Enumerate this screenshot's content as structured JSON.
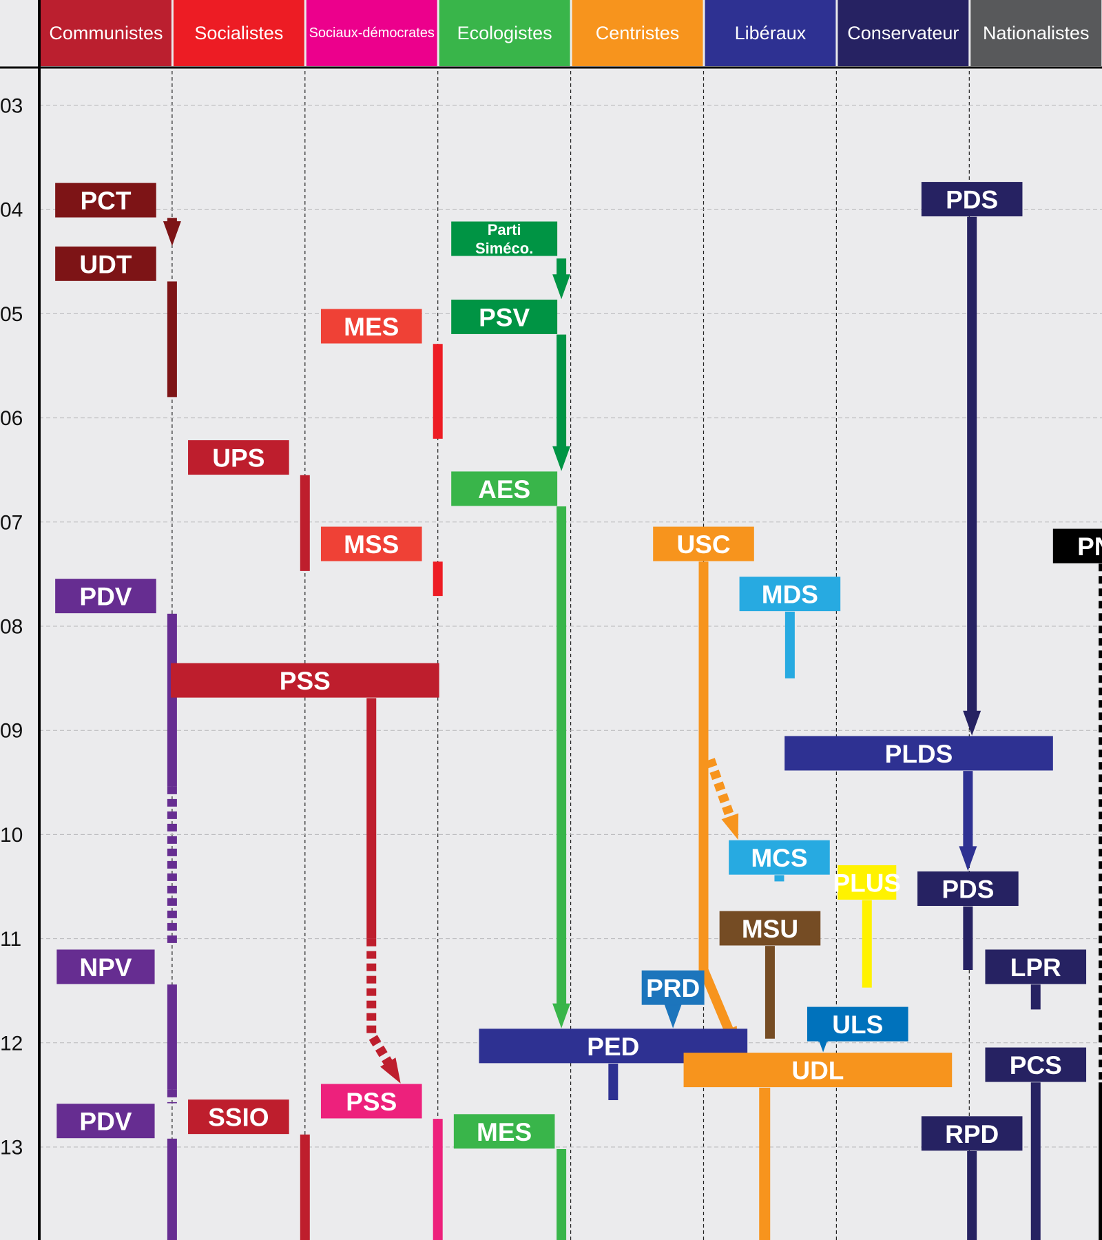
{
  "columns": [
    {
      "label": "Communistes",
      "color": "#bb1f2f"
    },
    {
      "label": "Socialistes",
      "color": "#ed1c24"
    },
    {
      "label": "Sociaux-démocrates",
      "color": "#ec008c",
      "small": true
    },
    {
      "label": "Ecologistes",
      "color": "#39b54a"
    },
    {
      "label": "Centristes",
      "color": "#f7941d"
    },
    {
      "label": "Libéraux",
      "color": "#2e3192"
    },
    {
      "label": "Conservateur",
      "color": "#262262"
    },
    {
      "label": "Nationalistes",
      "color": "#58595b"
    }
  ],
  "years": [
    {
      "label": "03",
      "v": 0
    },
    {
      "label": "04",
      "v": 1
    },
    {
      "label": "05",
      "v": 2
    },
    {
      "label": "06",
      "v": 3
    },
    {
      "label": "07",
      "v": 4
    },
    {
      "label": "08",
      "v": 5
    },
    {
      "label": "09",
      "v": 6
    },
    {
      "label": "10",
      "v": 7
    },
    {
      "label": "11",
      "v": 8
    },
    {
      "label": "12",
      "v": 9
    },
    {
      "label": "13",
      "v": 10
    }
  ],
  "parties": [
    {
      "id": "pct",
      "label": "PCT",
      "color": "#7d1416",
      "col": 0,
      "w": 1.0,
      "y": 0.91
    },
    {
      "id": "udt",
      "label": "UDT",
      "color": "#7d1416",
      "col": 0,
      "w": 1.0,
      "y": 1.52
    },
    {
      "id": "pdv1",
      "label": "PDV",
      "color": "#662d91",
      "col": 0,
      "w": 1.0,
      "y": 4.71
    },
    {
      "id": "npv",
      "label": "NPV",
      "color": "#662d91",
      "col": 0,
      "w": 0.97,
      "y": 8.27
    },
    {
      "id": "pdv2",
      "label": "PDV",
      "color": "#662d91",
      "col": 0,
      "w": 0.97,
      "y": 9.75
    },
    {
      "id": "ups",
      "label": "UPS",
      "color": "#be1e2d",
      "col": 1,
      "w": 1.0,
      "y": 3.38
    },
    {
      "id": "pss1",
      "label": "PSS",
      "color": "#be1e2d",
      "col": 1.5,
      "w": 2.0,
      "y": 5.52
    },
    {
      "id": "ssio",
      "label": "SSIO",
      "color": "#be1e2d",
      "col": 1,
      "w": 1.0,
      "y": 9.71
    },
    {
      "id": "mes1",
      "label": "MES",
      "color": "#ef4136",
      "col": 2,
      "w": 1.0,
      "y": 2.12
    },
    {
      "id": "mss",
      "label": "MSS",
      "color": "#ef4136",
      "col": 2,
      "w": 1.0,
      "y": 4.21
    },
    {
      "id": "pss2",
      "label": "PSS",
      "color": "#ed217c",
      "col": 2,
      "w": 1.0,
      "y": 9.56
    },
    {
      "id": "simeco",
      "label": "Parti Siméco.",
      "color": "#009444",
      "col": 3,
      "w": 1.05,
      "y": 1.28,
      "two": true
    },
    {
      "id": "psv",
      "label": "PSV",
      "color": "#009444",
      "col": 3,
      "w": 1.05,
      "y": 2.03
    },
    {
      "id": "aes",
      "label": "AES",
      "color": "#39b54a",
      "col": 3,
      "w": 1.05,
      "y": 3.68
    },
    {
      "id": "mes2",
      "label": "MES",
      "color": "#39b54a",
      "col": 3,
      "w": 1.0,
      "y": 9.85
    },
    {
      "id": "ped",
      "label": "PED",
      "color": "#2e3192",
      "col": 3.82,
      "w": 2.0,
      "y": 9.03
    },
    {
      "id": "prd",
      "label": "PRD",
      "color": "#1c75bc",
      "col": 4.27,
      "w": 0.62,
      "y": 8.47
    },
    {
      "id": "usc",
      "label": "USC",
      "color": "#f7941d",
      "col": 4.5,
      "w": 1.0,
      "y": 4.21
    },
    {
      "id": "udl",
      "label": "UDL",
      "color": "#f7941d",
      "col": 5.36,
      "w": 2.0,
      "y": 9.26
    },
    {
      "id": "mds",
      "label": "MDS",
      "color": "#27aae1",
      "col": 5.15,
      "w": 1.0,
      "y": 4.69
    },
    {
      "id": "mcs",
      "label": "MCS",
      "color": "#27aae1",
      "col": 5.07,
      "w": 1.0,
      "y": 7.22
    },
    {
      "id": "msu",
      "label": "MSU",
      "color": "#754c24",
      "col": 5.0,
      "w": 1.0,
      "y": 7.9
    },
    {
      "id": "uls",
      "label": "ULS",
      "color": "#0072bc",
      "col": 5.66,
      "w": 1.0,
      "y": 8.82
    },
    {
      "id": "plus",
      "label": "PLUS",
      "color": "#fff200",
      "col": 5.73,
      "w": 0.58,
      "y": 7.46
    },
    {
      "id": "pds1",
      "label": "PDS",
      "color": "#262262",
      "col": 6.52,
      "w": 1.0,
      "y": 0.9
    },
    {
      "id": "plds",
      "label": "PLDS",
      "color": "#2e3192",
      "col": 6.12,
      "w": 2.0,
      "y": 6.22
    },
    {
      "id": "pds2",
      "label": "PDS",
      "color": "#262262",
      "col": 6.49,
      "w": 1.0,
      "y": 7.52
    },
    {
      "id": "lpr",
      "label": "LPR",
      "color": "#262262",
      "col": 7.0,
      "w": 1.0,
      "y": 8.27
    },
    {
      "id": "pcs",
      "label": "PCS",
      "color": "#262262",
      "col": 7.0,
      "w": 1.0,
      "y": 9.21
    },
    {
      "id": "rpd",
      "label": "RPD",
      "color": "#262262",
      "col": 6.52,
      "w": 1.0,
      "y": 9.87
    },
    {
      "id": "pns",
      "label": "PNS",
      "color": "#000000",
      "col": 7.51,
      "w": 1.0,
      "y": 4.23
    }
  ],
  "links": [
    {
      "id": "pct-udt",
      "color": "#7d1416",
      "style": "solid",
      "w": 14,
      "pts": [
        [
          0.5,
          1.08
        ],
        [
          0.5,
          1.35
        ]
      ],
      "arrow": true
    },
    {
      "id": "udt-life",
      "color": "#7d1416",
      "style": "solid",
      "w": 14,
      "pts": [
        [
          0.5,
          1.69
        ],
        [
          0.5,
          2.8
        ]
      ]
    },
    {
      "id": "pdv-solid",
      "color": "#662d91",
      "style": "solid",
      "w": 14,
      "pts": [
        [
          0.5,
          4.88
        ],
        [
          0.5,
          6.54
        ]
      ]
    },
    {
      "id": "pdv-dash",
      "color": "#662d91",
      "style": "dashed",
      "w": 14,
      "pts": [
        [
          0.5,
          6.54
        ],
        [
          0.5,
          8.05
        ]
      ]
    },
    {
      "id": "npv-line",
      "color": "#662d91",
      "style": "solid",
      "w": 14,
      "pts": [
        [
          0.5,
          8.44
        ],
        [
          0.5,
          9.45
        ]
      ]
    },
    {
      "id": "npv-dash",
      "color": "#662d91",
      "style": "dashed",
      "w": 14,
      "pts": [
        [
          0.5,
          9.45
        ],
        [
          0.5,
          9.58
        ]
      ]
    },
    {
      "id": "pdv2-line",
      "color": "#662d91",
      "style": "solid",
      "w": 14,
      "pts": [
        [
          0.5,
          9.92
        ],
        [
          0.5,
          10.9
        ]
      ]
    },
    {
      "id": "ups-line",
      "color": "#be1e2d",
      "style": "solid",
      "w": 14,
      "pts": [
        [
          1.5,
          3.55
        ],
        [
          1.5,
          4.47
        ]
      ]
    },
    {
      "id": "pss-solid",
      "color": "#be1e2d",
      "style": "solid",
      "w": 14,
      "pts": [
        [
          2.0,
          5.69
        ],
        [
          2.0,
          8.0
        ]
      ]
    },
    {
      "id": "pss-dash",
      "color": "#be1e2d",
      "style": "dashed",
      "w": 14,
      "pts": [
        [
          2.0,
          8.0
        ],
        [
          2.0,
          8.92
        ],
        [
          2.22,
          9.39
        ]
      ],
      "arrow": true
    },
    {
      "id": "ssio-line",
      "color": "#be1e2d",
      "style": "solid",
      "w": 14,
      "pts": [
        [
          1.5,
          9.88
        ],
        [
          1.5,
          10.9
        ]
      ]
    },
    {
      "id": "mes1-line",
      "color": "#ed1c24",
      "style": "solid",
      "w": 14,
      "pts": [
        [
          2.5,
          2.29
        ],
        [
          2.5,
          3.2
        ]
      ]
    },
    {
      "id": "mss-line",
      "color": "#ed1c24",
      "style": "solid",
      "w": 14,
      "pts": [
        [
          2.5,
          4.38
        ],
        [
          2.5,
          4.71
        ]
      ]
    },
    {
      "id": "pss2-line",
      "color": "#ed217c",
      "style": "solid",
      "w": 14,
      "pts": [
        [
          2.5,
          9.73
        ],
        [
          2.5,
          10.9
        ]
      ]
    },
    {
      "id": "simeco-psv",
      "color": "#009444",
      "style": "solid",
      "w": 14,
      "pts": [
        [
          3.43,
          1.47
        ],
        [
          3.43,
          1.86
        ]
      ],
      "arrow": true
    },
    {
      "id": "psv-aes",
      "color": "#009444",
      "style": "solid",
      "w": 14,
      "pts": [
        [
          3.43,
          2.2
        ],
        [
          3.43,
          3.51
        ]
      ],
      "arrow": true
    },
    {
      "id": "aes-ped",
      "color": "#39b54a",
      "style": "solid",
      "w": 14,
      "pts": [
        [
          3.43,
          3.85
        ],
        [
          3.43,
          8.86
        ]
      ],
      "arrow": true
    },
    {
      "id": "mes2-line",
      "color": "#39b54a",
      "style": "solid",
      "w": 14,
      "pts": [
        [
          3.43,
          10.02
        ],
        [
          3.43,
          10.9
        ]
      ]
    },
    {
      "id": "ped-stub",
      "color": "#2e3192",
      "style": "solid",
      "w": 14,
      "pts": [
        [
          3.82,
          9.2
        ],
        [
          3.82,
          9.55
        ]
      ]
    },
    {
      "id": "prd-ped",
      "color": "#1c75bc",
      "style": "solid",
      "w": 14,
      "pts": [
        [
          4.27,
          8.64
        ],
        [
          4.27,
          8.86
        ]
      ],
      "arrow": true
    },
    {
      "id": "usc-line",
      "color": "#f7941d",
      "style": "solid",
      "w": 14,
      "pts": [
        [
          4.5,
          4.38
        ],
        [
          4.5,
          8.3
        ],
        [
          4.76,
          9.09
        ]
      ],
      "arrow": true
    },
    {
      "id": "usc-mcs",
      "color": "#f7941d",
      "style": "dashed",
      "w": 14,
      "pts": [
        [
          4.55,
          6.28
        ],
        [
          4.76,
          7.05
        ]
      ],
      "arrow": true
    },
    {
      "id": "udl-line",
      "color": "#f7941d",
      "style": "solid",
      "w": 16,
      "pts": [
        [
          4.96,
          9.43
        ],
        [
          4.96,
          10.9
        ]
      ]
    },
    {
      "id": "mds-line",
      "color": "#27aae1",
      "style": "solid",
      "w": 14,
      "pts": [
        [
          5.15,
          4.86
        ],
        [
          5.15,
          5.5
        ]
      ]
    },
    {
      "id": "mcs-stub",
      "color": "#27aae1",
      "style": "solid",
      "w": 14,
      "pts": [
        [
          5.07,
          7.39
        ],
        [
          5.07,
          7.45
        ]
      ]
    },
    {
      "id": "msu-line",
      "color": "#754c24",
      "style": "solid",
      "w": 14,
      "pts": [
        [
          5.0,
          8.07
        ],
        [
          5.0,
          8.96
        ]
      ]
    },
    {
      "id": "plus-line",
      "color": "#fff200",
      "style": "solid",
      "w": 14,
      "pts": [
        [
          5.73,
          7.63
        ],
        [
          5.73,
          8.47
        ]
      ]
    },
    {
      "id": "uls-udl",
      "color": "#0072bc",
      "style": "solid",
      "w": 14,
      "pts": [
        [
          5.4,
          8.99
        ],
        [
          5.4,
          9.09
        ]
      ],
      "arrow": true
    },
    {
      "id": "pds-plds",
      "color": "#262262",
      "style": "solid",
      "w": 14,
      "pts": [
        [
          6.52,
          1.07
        ],
        [
          6.52,
          6.05
        ]
      ],
      "arrow": true
    },
    {
      "id": "plds-pds",
      "color": "#2e3192",
      "style": "solid",
      "w": 14,
      "pts": [
        [
          6.49,
          6.39
        ],
        [
          6.49,
          7.35
        ]
      ],
      "arrow": true
    },
    {
      "id": "pds2-line",
      "color": "#262262",
      "style": "solid",
      "w": 14,
      "pts": [
        [
          6.49,
          7.69
        ],
        [
          6.49,
          8.3
        ]
      ]
    },
    {
      "id": "lpr-stub",
      "color": "#262262",
      "style": "solid",
      "w": 14,
      "pts": [
        [
          7.0,
          8.44
        ],
        [
          7.0,
          8.68
        ]
      ]
    },
    {
      "id": "pcs-line",
      "color": "#262262",
      "style": "solid",
      "w": 14,
      "pts": [
        [
          7.0,
          9.38
        ],
        [
          7.0,
          10.9
        ]
      ]
    },
    {
      "id": "rpd-line",
      "color": "#262262",
      "style": "solid",
      "w": 14,
      "pts": [
        [
          6.52,
          10.04
        ],
        [
          6.52,
          10.9
        ]
      ]
    },
    {
      "id": "pns-dash",
      "color": "#000000",
      "style": "dashed",
      "w": 14,
      "pts": [
        [
          7.51,
          4.4
        ],
        [
          7.51,
          9.38
        ]
      ]
    },
    {
      "id": "pns-solid",
      "color": "#000000",
      "style": "solid",
      "w": 14,
      "pts": [
        [
          7.51,
          9.38
        ],
        [
          7.51,
          10.9
        ]
      ]
    }
  ]
}
